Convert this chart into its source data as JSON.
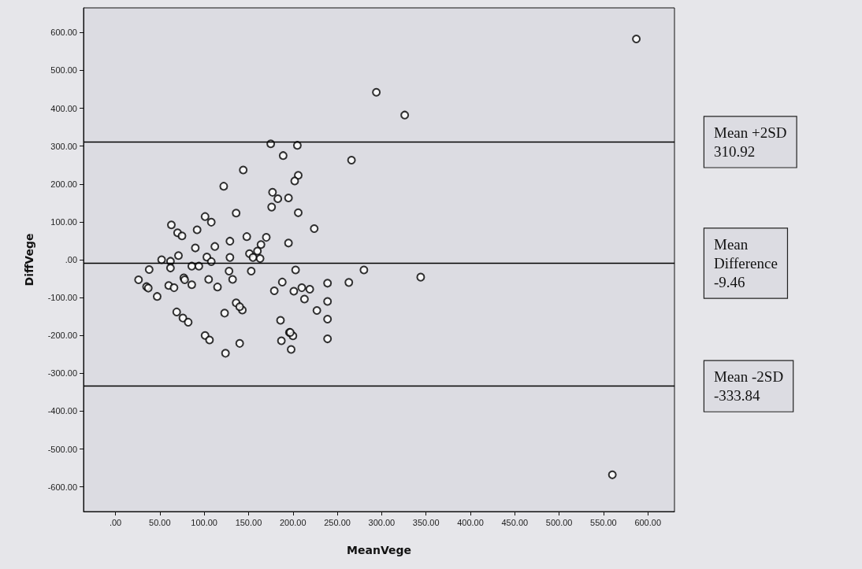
{
  "chart_data": {
    "type": "scatter",
    "xlabel": "MeanVege",
    "ylabel": "DiffVege",
    "marker": "circle",
    "grid": false,
    "x": [
      587,
      294,
      326,
      560,
      175,
      189,
      144,
      122,
      177,
      183,
      195,
      176,
      136,
      101,
      108,
      63,
      92,
      70,
      75,
      148,
      170,
      129,
      164,
      90,
      112,
      160,
      71,
      151,
      129,
      155,
      163,
      103,
      108,
      52,
      62,
      62,
      86,
      94,
      38,
      128,
      153,
      195,
      26,
      35,
      37,
      60,
      66,
      77,
      78,
      86,
      105,
      132,
      115,
      47,
      188,
      179,
      69,
      76,
      82,
      136,
      143,
      140,
      123,
      186,
      101,
      106,
      140,
      124,
      187,
      196,
      200,
      197,
      198,
      205,
      266,
      206,
      202,
      206,
      224,
      203,
      280,
      344,
      239,
      263,
      201,
      210,
      219,
      213,
      239,
      227,
      239,
      239
    ],
    "values": [
      583,
      442,
      382,
      -568,
      306,
      275,
      237,
      194,
      178,
      161,
      163,
      139,
      123,
      114,
      99,
      92,
      79,
      71,
      63,
      61,
      59,
      49,
      40,
      31,
      35,
      23,
      11,
      16,
      6,
      6,
      3,
      7,
      -5,
      0,
      -4,
      -22,
      -17,
      -17,
      -26,
      -30,
      -30,
      44,
      -53,
      -71,
      -75,
      -68,
      -74,
      -48,
      -53,
      -66,
      -52,
      -52,
      -72,
      -97,
      -59,
      -82,
      -138,
      -154,
      -165,
      -114,
      -133,
      -124,
      -141,
      -160,
      -200,
      -212,
      -221,
      -247,
      -214,
      -192,
      -201,
      -192,
      -237,
      302,
      263,
      223,
      208,
      124,
      82,
      -27,
      -27,
      -46,
      -62,
      -60,
      -83,
      -74,
      -78,
      -104,
      -110,
      -134,
      -157,
      -209
    ],
    "color": "#000000",
    "xlim": [
      -36,
      630
    ],
    "ylim": [
      -665,
      665
    ],
    "xticks": [
      {
        "value": 0,
        "label": ".00"
      },
      {
        "value": 50,
        "label": "50.00"
      },
      {
        "value": 100,
        "label": "100.00"
      },
      {
        "value": 150,
        "label": "150.00"
      },
      {
        "value": 200,
        "label": "200.00"
      },
      {
        "value": 250,
        "label": "250.00"
      },
      {
        "value": 300,
        "label": "300.00"
      },
      {
        "value": 350,
        "label": "350.00"
      },
      {
        "value": 400,
        "label": "400.00"
      },
      {
        "value": 450,
        "label": "450.00"
      },
      {
        "value": 500,
        "label": "500.00"
      },
      {
        "value": 550,
        "label": "550.00"
      },
      {
        "value": 600,
        "label": "600.00"
      }
    ],
    "yticks": [
      {
        "value": -600,
        "label": "-600.00"
      },
      {
        "value": -500,
        "label": "-500.00"
      },
      {
        "value": -400,
        "label": "-400.00"
      },
      {
        "value": -300,
        "label": "-300.00"
      },
      {
        "value": -200,
        "label": "-200.00"
      },
      {
        "value": -100,
        "label": "-100.00"
      },
      {
        "value": 0,
        "label": ".00"
      },
      {
        "value": 100,
        "label": "100.00"
      },
      {
        "value": 200,
        "label": "200.00"
      },
      {
        "value": 300,
        "label": "300.00"
      },
      {
        "value": 400,
        "label": "400.00"
      },
      {
        "value": 500,
        "label": "500.00"
      },
      {
        "value": 600,
        "label": "600.00"
      }
    ],
    "ref_lines": [
      {
        "axis": "y",
        "value": 310.92,
        "label": "Mean +2SD\n310.92",
        "color": "#000000"
      },
      {
        "axis": "y",
        "value": -9.46,
        "label": "Mean\nDifference\n-9.46",
        "color": "#000000"
      },
      {
        "axis": "y",
        "value": -333.84,
        "label": "Mean -2SD\n-333.84",
        "color": "#000000"
      }
    ]
  }
}
